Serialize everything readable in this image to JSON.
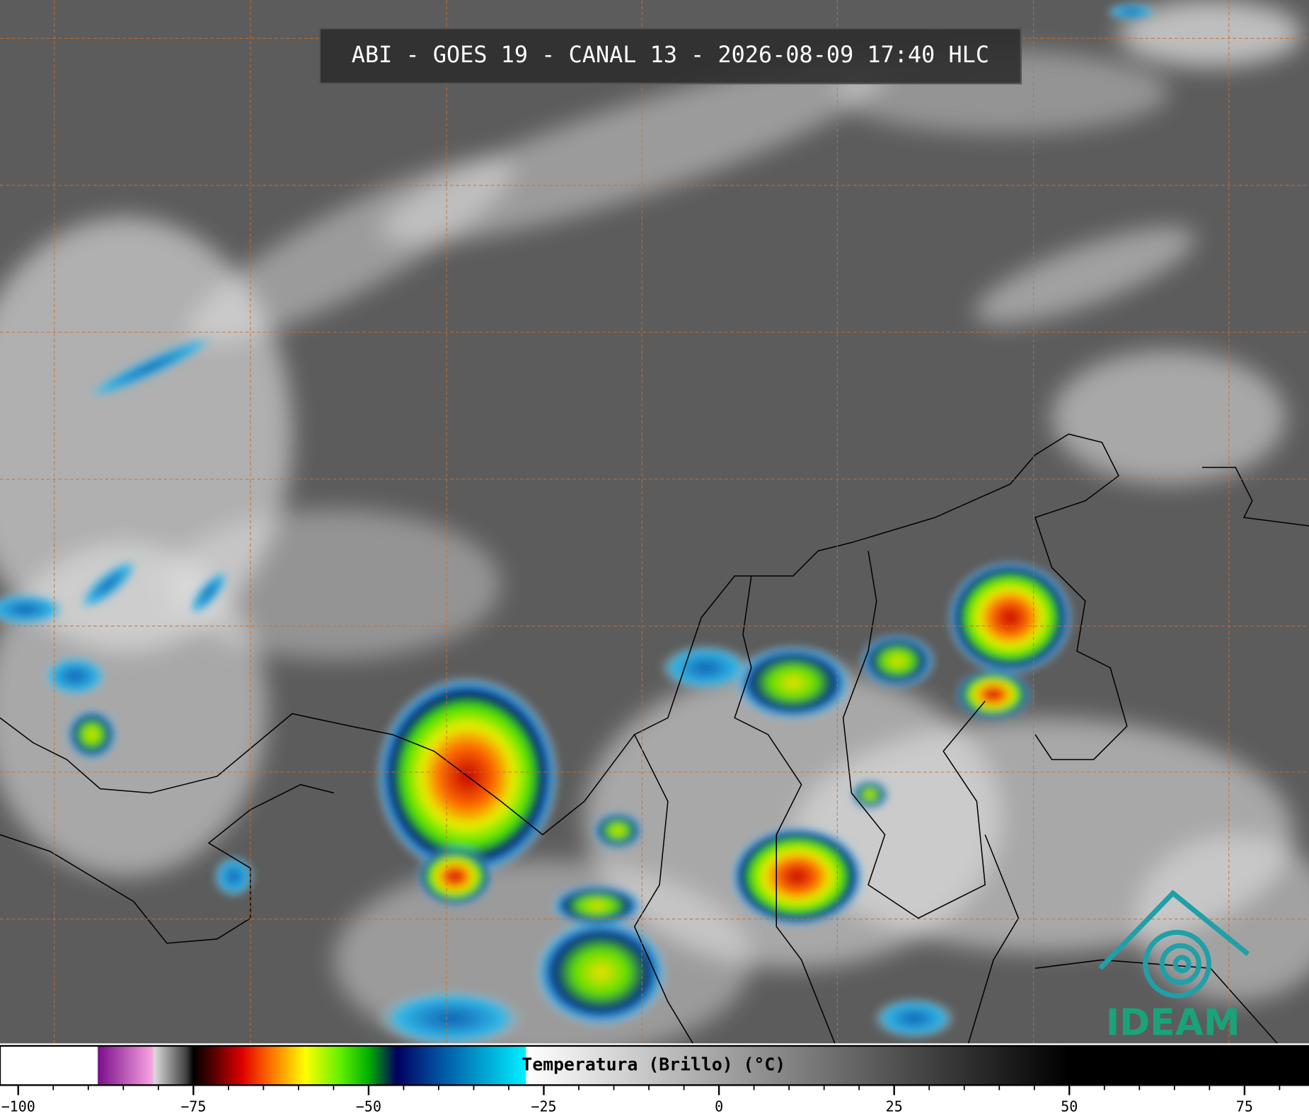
{
  "title": "ABI - GOES 19 - CANAL 13 - 2026-08-09 17:40 HLC",
  "logo": "IDEAM",
  "colorbar": {
    "label": "Temperatura (Brillo) (°C)",
    "lim": [
      -102.6,
      84.2
    ],
    "ticks": [
      {
        "value": -100,
        "label": "−100"
      },
      {
        "value": -75,
        "label": "−75"
      },
      {
        "value": -50,
        "label": "−50"
      },
      {
        "value": -25,
        "label": "−25"
      },
      0,
      25,
      50,
      75
    ],
    "minor_ticks": [
      -100,
      -95,
      -90,
      -85,
      -80,
      -75,
      -70,
      -65,
      -60,
      -55,
      -50,
      -45,
      -40,
      -35,
      -30,
      -25,
      -20,
      -15,
      -10,
      -5,
      0,
      5,
      10,
      15,
      20,
      25,
      30,
      35,
      40,
      45,
      50,
      55,
      60,
      65,
      70,
      75,
      80
    ],
    "stops": [
      {
        "value": -102.6,
        "color": "#ffffff"
      },
      {
        "value": -88.7,
        "color": "#ffffff"
      },
      {
        "value": -88.6,
        "color": "#7a0f8c"
      },
      {
        "value": -81,
        "color": "#f6a0e0"
      },
      {
        "value": -80.5,
        "color": "#d8d8d8"
      },
      {
        "value": -76,
        "color": "#404040"
      },
      {
        "value": -75,
        "color": "#000000"
      },
      {
        "value": -72,
        "color": "#5a0000"
      },
      {
        "value": -68,
        "color": "#e00000"
      },
      {
        "value": -64,
        "color": "#ff7000"
      },
      {
        "value": -59,
        "color": "#ffff00"
      },
      {
        "value": -54,
        "color": "#60f000"
      },
      {
        "value": -50,
        "color": "#00b000"
      },
      {
        "value": -46,
        "color": "#000060"
      },
      {
        "value": -40,
        "color": "#0050a0"
      },
      {
        "value": -27.6,
        "color": "#00f0ff"
      },
      {
        "value": -27.5,
        "color": "#ffffff"
      },
      {
        "value": 49.8,
        "color": "#000000"
      },
      {
        "value": 84.2,
        "color": "#000000"
      }
    ]
  }
}
